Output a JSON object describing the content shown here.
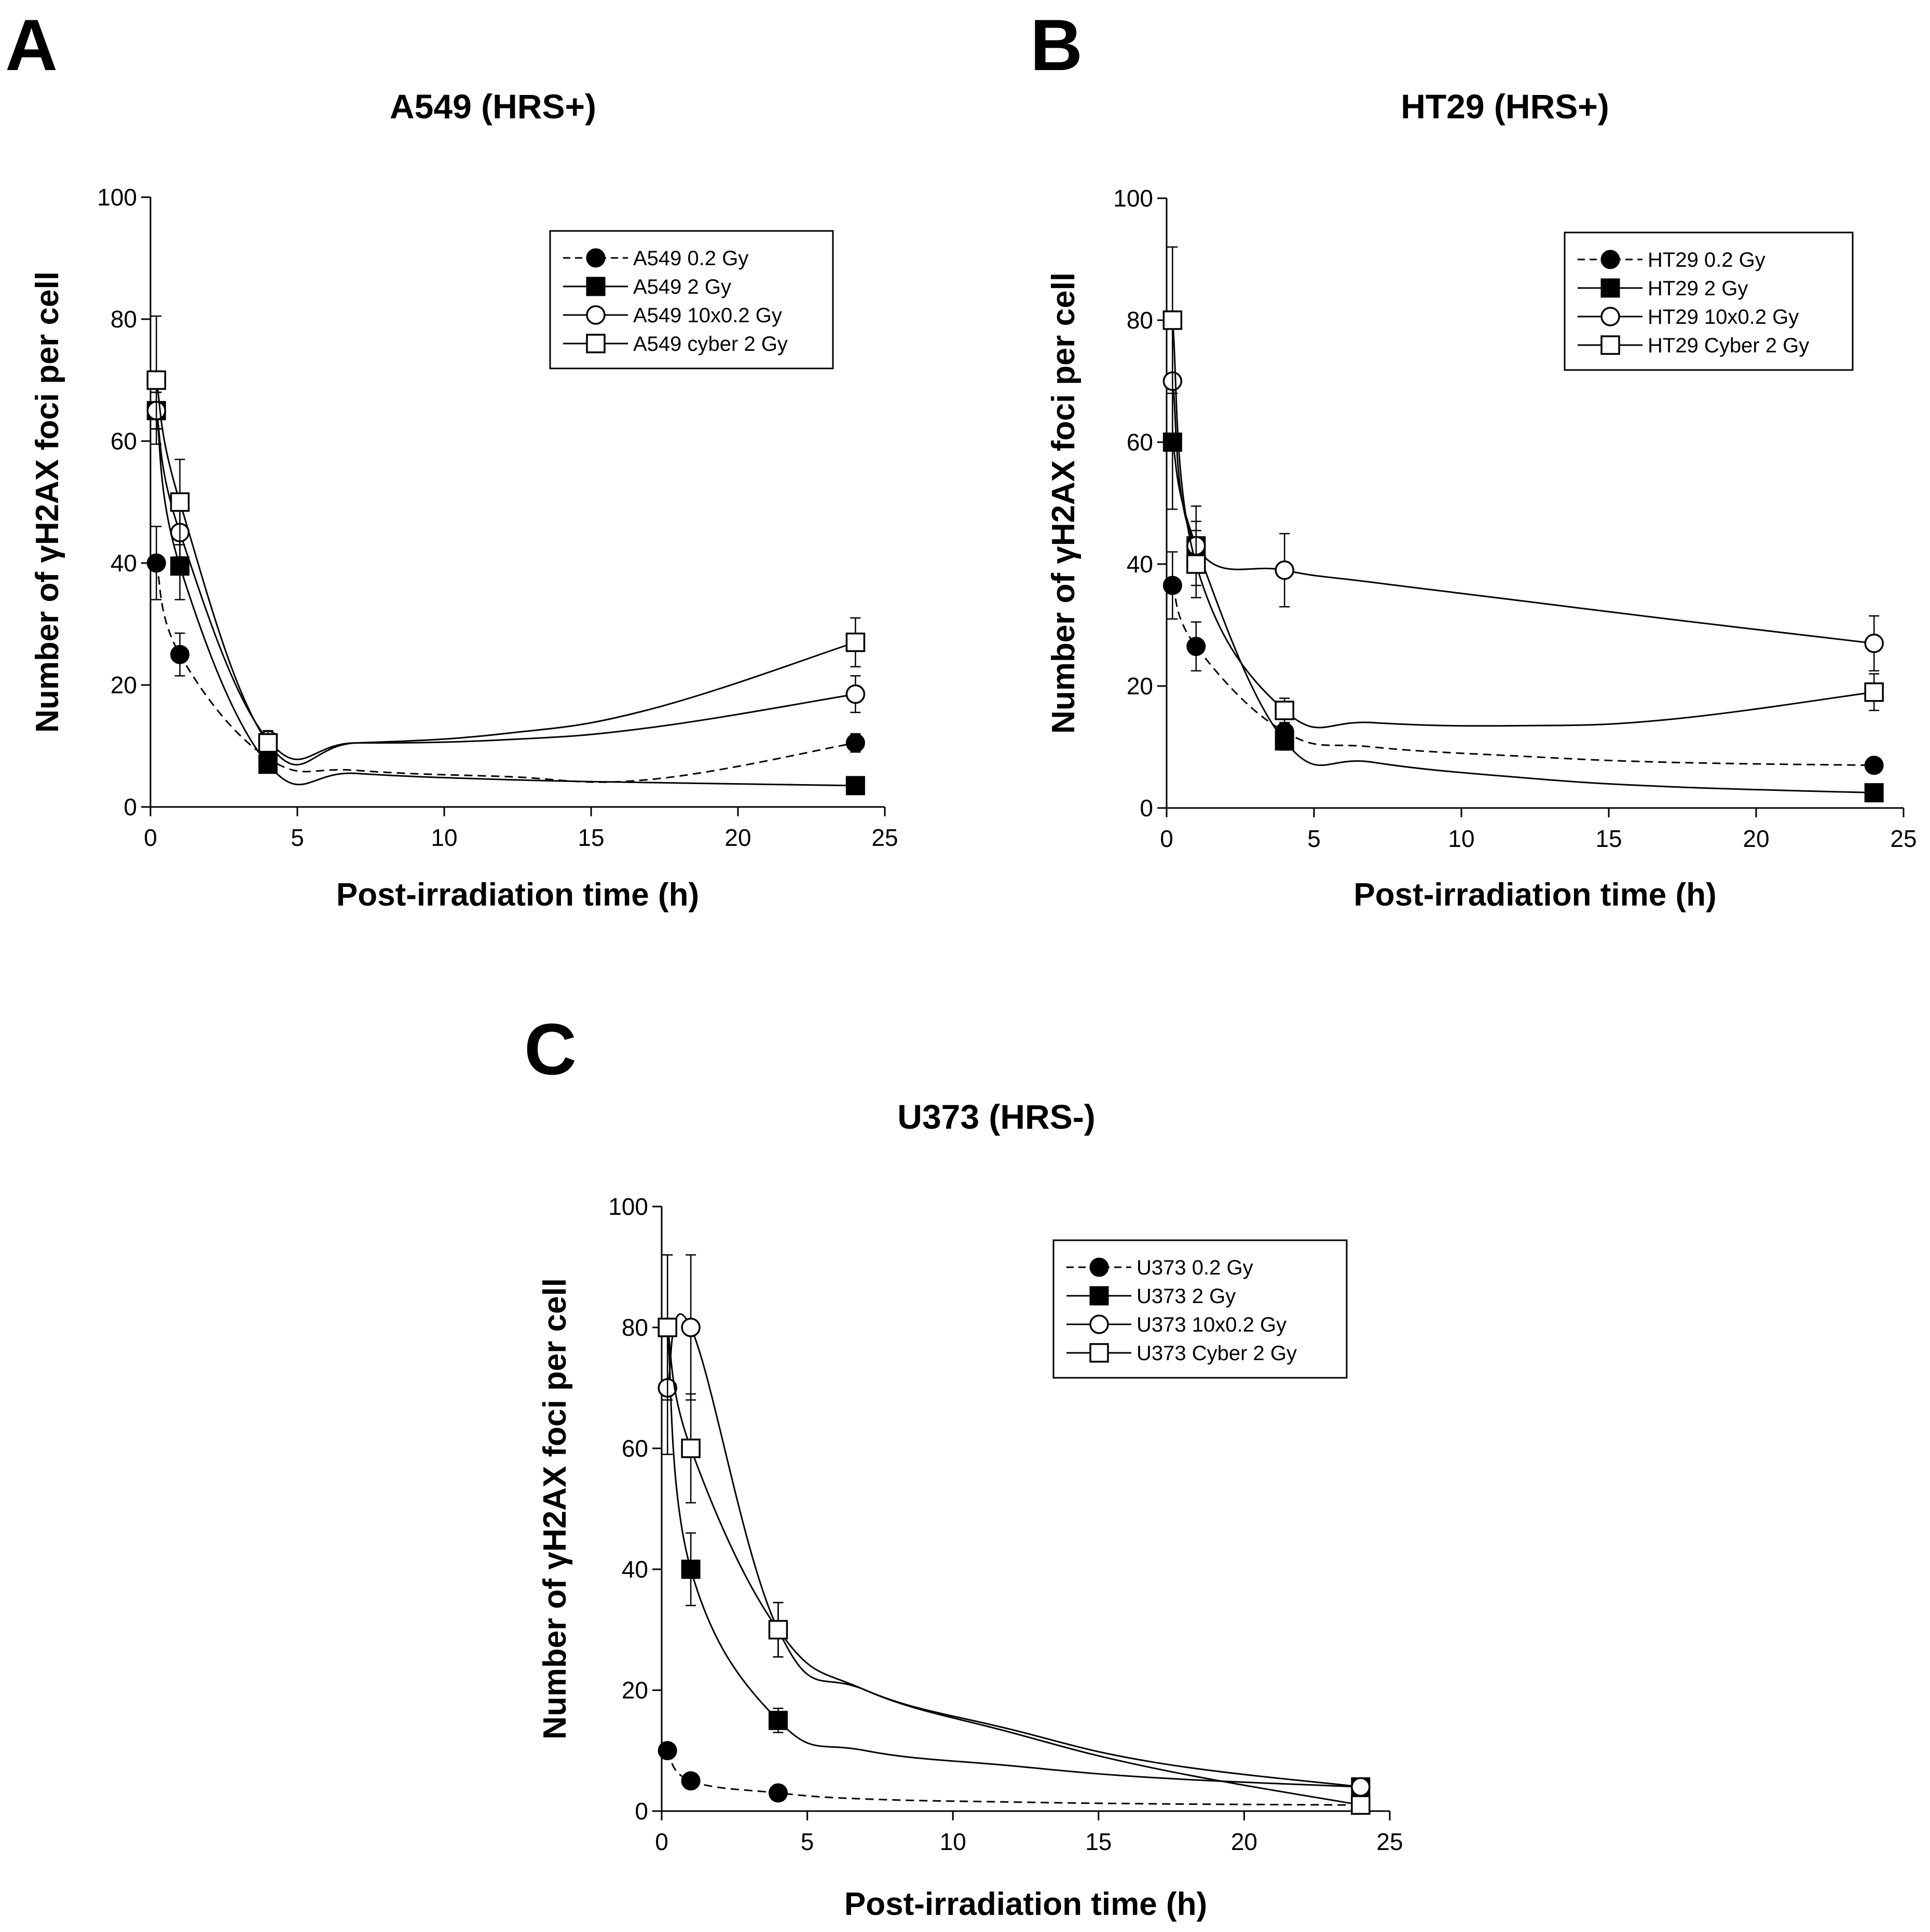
{
  "figure": {
    "font_note": "multi-panel gamma-H2AX foci kinetics"
  },
  "chart_data": [
    {
      "panel": "A",
      "type": "line",
      "title": "A549 (HRS+)",
      "xlabel": "Post-irradiation time (h)",
      "ylabel": "Number of γH2AX foci per cell",
      "xlim": [
        0,
        25
      ],
      "ylim": [
        0,
        100
      ],
      "xticks": [
        0,
        5,
        10,
        15,
        20,
        25
      ],
      "yticks": [
        0,
        20,
        40,
        60,
        80,
        100
      ],
      "legend_position": "top-right",
      "series": [
        {
          "name": "A549 0.2 Gy",
          "marker": "circle-filled",
          "line": "dashed",
          "x": [
            0.2,
            1,
            4,
            24
          ],
          "y": [
            40,
            25,
            8,
            10.5
          ],
          "err": [
            6,
            3.5,
            1,
            1.5
          ],
          "curve_y": [
            40,
            25,
            8,
            6,
            5,
            4.5,
            10.5
          ]
        },
        {
          "name": "A549 2 Gy",
          "marker": "square-filled",
          "line": "solid",
          "x": [
            0.2,
            1,
            4,
            24
          ],
          "y": [
            65,
            39.5,
            7,
            3.5
          ],
          "err": [
            3,
            5.5,
            1,
            0.8
          ],
          "curve_y": [
            65,
            39.5,
            7,
            5.5,
            4.5,
            4,
            3.5
          ]
        },
        {
          "name": "A549 10x0.2 Gy",
          "marker": "circle-open",
          "line": "solid",
          "x": [
            0.2,
            1,
            4,
            24
          ],
          "y": [
            65,
            45,
            11,
            18.5
          ],
          "err": [
            3,
            4,
            1.5,
            3
          ],
          "curve_y": [
            65,
            45,
            11,
            10.5,
            11,
            13,
            18.5
          ]
        },
        {
          "name": "A549 cyber 2 Gy",
          "marker": "square-open",
          "line": "solid",
          "x": [
            0.2,
            1,
            4,
            24
          ],
          "y": [
            70,
            50,
            10.5,
            27
          ],
          "err": [
            10.5,
            7,
            2,
            4
          ],
          "curve_y": [
            70,
            50,
            10.5,
            10.5,
            12,
            16,
            27
          ]
        }
      ]
    },
    {
      "panel": "B",
      "type": "line",
      "title": "HT29 (HRS+)",
      "xlabel": "Post-irradiation time (h)",
      "ylabel": "Number of γH2AX foci per cell",
      "xlim": [
        0,
        25
      ],
      "ylim": [
        0,
        100
      ],
      "xticks": [
        0,
        5,
        10,
        15,
        20,
        25
      ],
      "yticks": [
        0,
        20,
        40,
        60,
        80,
        100
      ],
      "legend_position": "top-right",
      "series": [
        {
          "name": "HT29 0.2 Gy",
          "marker": "circle-filled",
          "line": "dashed",
          "x": [
            0.2,
            1,
            4,
            24
          ],
          "y": [
            36.5,
            26.5,
            12.5,
            7
          ],
          "err": [
            5.5,
            4,
            1.5,
            1
          ],
          "curve_y": [
            36.5,
            26.5,
            12.5,
            10,
            8.5,
            7.5,
            7
          ]
        },
        {
          "name": "HT29 2 Gy",
          "marker": "square-filled",
          "line": "solid",
          "x": [
            0.2,
            1,
            4,
            24
          ],
          "y": [
            60,
            43,
            11,
            2.5
          ],
          "err": [
            11,
            6.5,
            1.5,
            0.8
          ],
          "curve_y": [
            60,
            43,
            11,
            7.5,
            5,
            3.5,
            2.5
          ]
        },
        {
          "name": "HT29 10x0.2 Gy",
          "marker": "circle-open",
          "line": "solid",
          "x": [
            0.2,
            1,
            4,
            24
          ],
          "y": [
            70,
            43,
            39,
            27
          ],
          "err": [
            9.5,
            4,
            6,
            4.5
          ],
          "curve_y": [
            70,
            43,
            39,
            37,
            34,
            31,
            27
          ]
        },
        {
          "name": "HT29 Cyber 2 Gy",
          "marker": "square-open",
          "line": "solid",
          "x": [
            0.2,
            1,
            4,
            24
          ],
          "y": [
            80,
            40,
            16,
            19
          ],
          "err": [
            12,
            5.5,
            2,
            3
          ],
          "curve_y": [
            80,
            40,
            16,
            14,
            13.5,
            14.5,
            19
          ]
        }
      ]
    },
    {
      "panel": "C",
      "type": "line",
      "title": "U373 (HRS-)",
      "xlabel": "Post-irradiation time (h)",
      "ylabel": "Number of γH2AX foci per cell",
      "xlim": [
        0,
        25
      ],
      "ylim": [
        0,
        100
      ],
      "xticks": [
        0,
        5,
        10,
        15,
        20,
        25
      ],
      "yticks": [
        0,
        20,
        40,
        60,
        80,
        100
      ],
      "legend_position": "top-right",
      "series": [
        {
          "name": "U373 0.2 Gy",
          "marker": "circle-filled",
          "line": "dashed",
          "x": [
            0.2,
            1,
            4,
            24
          ],
          "y": [
            10,
            5,
            3,
            1
          ],
          "err": [
            1,
            0.8,
            0.6,
            0.3
          ],
          "curve_y": [
            10,
            5,
            3,
            2,
            1.5,
            1.2,
            1
          ]
        },
        {
          "name": "U373 2 Gy",
          "marker": "square-filled",
          "line": "solid",
          "x": [
            0.2,
            1,
            4,
            24
          ],
          "y": [
            80,
            40,
            15,
            4
          ],
          "err": [
            12,
            6,
            2,
            1
          ],
          "curve_y": [
            80,
            40,
            15,
            10,
            7.5,
            5.5,
            4
          ]
        },
        {
          "name": "U373 10x0.2 Gy",
          "marker": "circle-open",
          "line": "solid",
          "x": [
            0.2,
            1,
            4,
            24
          ],
          "y": [
            70,
            80,
            30,
            4
          ],
          "err": [
            11,
            12,
            4.5,
            1
          ],
          "curve_y": [
            70,
            80,
            30,
            20,
            13.5,
            8,
            4
          ]
        },
        {
          "name": "U373 Cyber 2 Gy",
          "marker": "square-open",
          "line": "solid",
          "x": [
            0.2,
            1,
            4,
            24
          ],
          "y": [
            80,
            60,
            30,
            1
          ],
          "err": [
            12,
            9,
            4.5,
            0.5
          ],
          "curve_y": [
            80,
            60,
            30,
            20,
            13,
            7,
            1
          ]
        }
      ]
    }
  ]
}
